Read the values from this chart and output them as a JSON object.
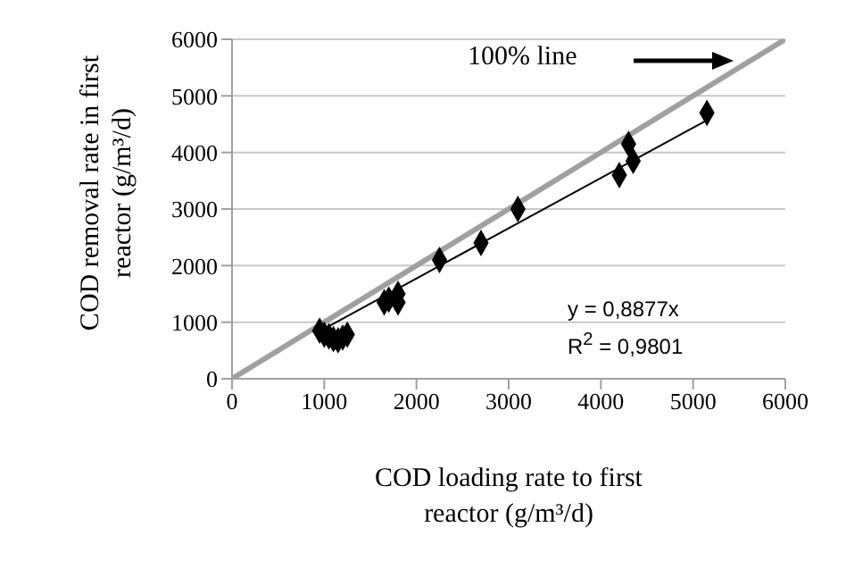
{
  "chart_data": {
    "type": "scatter",
    "xlabel": "COD loading rate to first reactor (g/m³/d)",
    "ylabel": "COD removal rate in first reactor (g/m³/d)",
    "xlim": [
      0,
      6000
    ],
    "ylim": [
      0,
      6000
    ],
    "xticks": [
      0,
      1000,
      2000,
      3000,
      4000,
      5000,
      6000
    ],
    "yticks": [
      0,
      1000,
      2000,
      3000,
      4000,
      5000,
      6000
    ],
    "grid": "y",
    "marker": "diamond",
    "series": [
      {
        "type": "line",
        "color": "#a0a0a0",
        "x": [
          0,
          6000
        ],
        "values": [
          0,
          6000
        ],
        "marker": "none"
      },
      {
        "type": "line",
        "color": "#000000",
        "x": [
          950,
          5150
        ],
        "values": [
          840,
          4570
        ],
        "marker": "none"
      },
      {
        "color": "#000000",
        "x": [
          950,
          1000,
          1050,
          1100,
          1150,
          1200,
          1250,
          1650,
          1700,
          1800,
          1800,
          2250,
          2700,
          3100,
          4200,
          4300,
          4350,
          5150
        ],
        "values": [
          850,
          780,
          750,
          700,
          680,
          730,
          780,
          1350,
          1400,
          1350,
          1500,
          2100,
          2400,
          3000,
          3600,
          4150,
          3850,
          4700
        ]
      }
    ],
    "annotations": [
      "100% line",
      "y = 0,8877x",
      "R$^{2}$ = 0,9801"
    ]
  }
}
